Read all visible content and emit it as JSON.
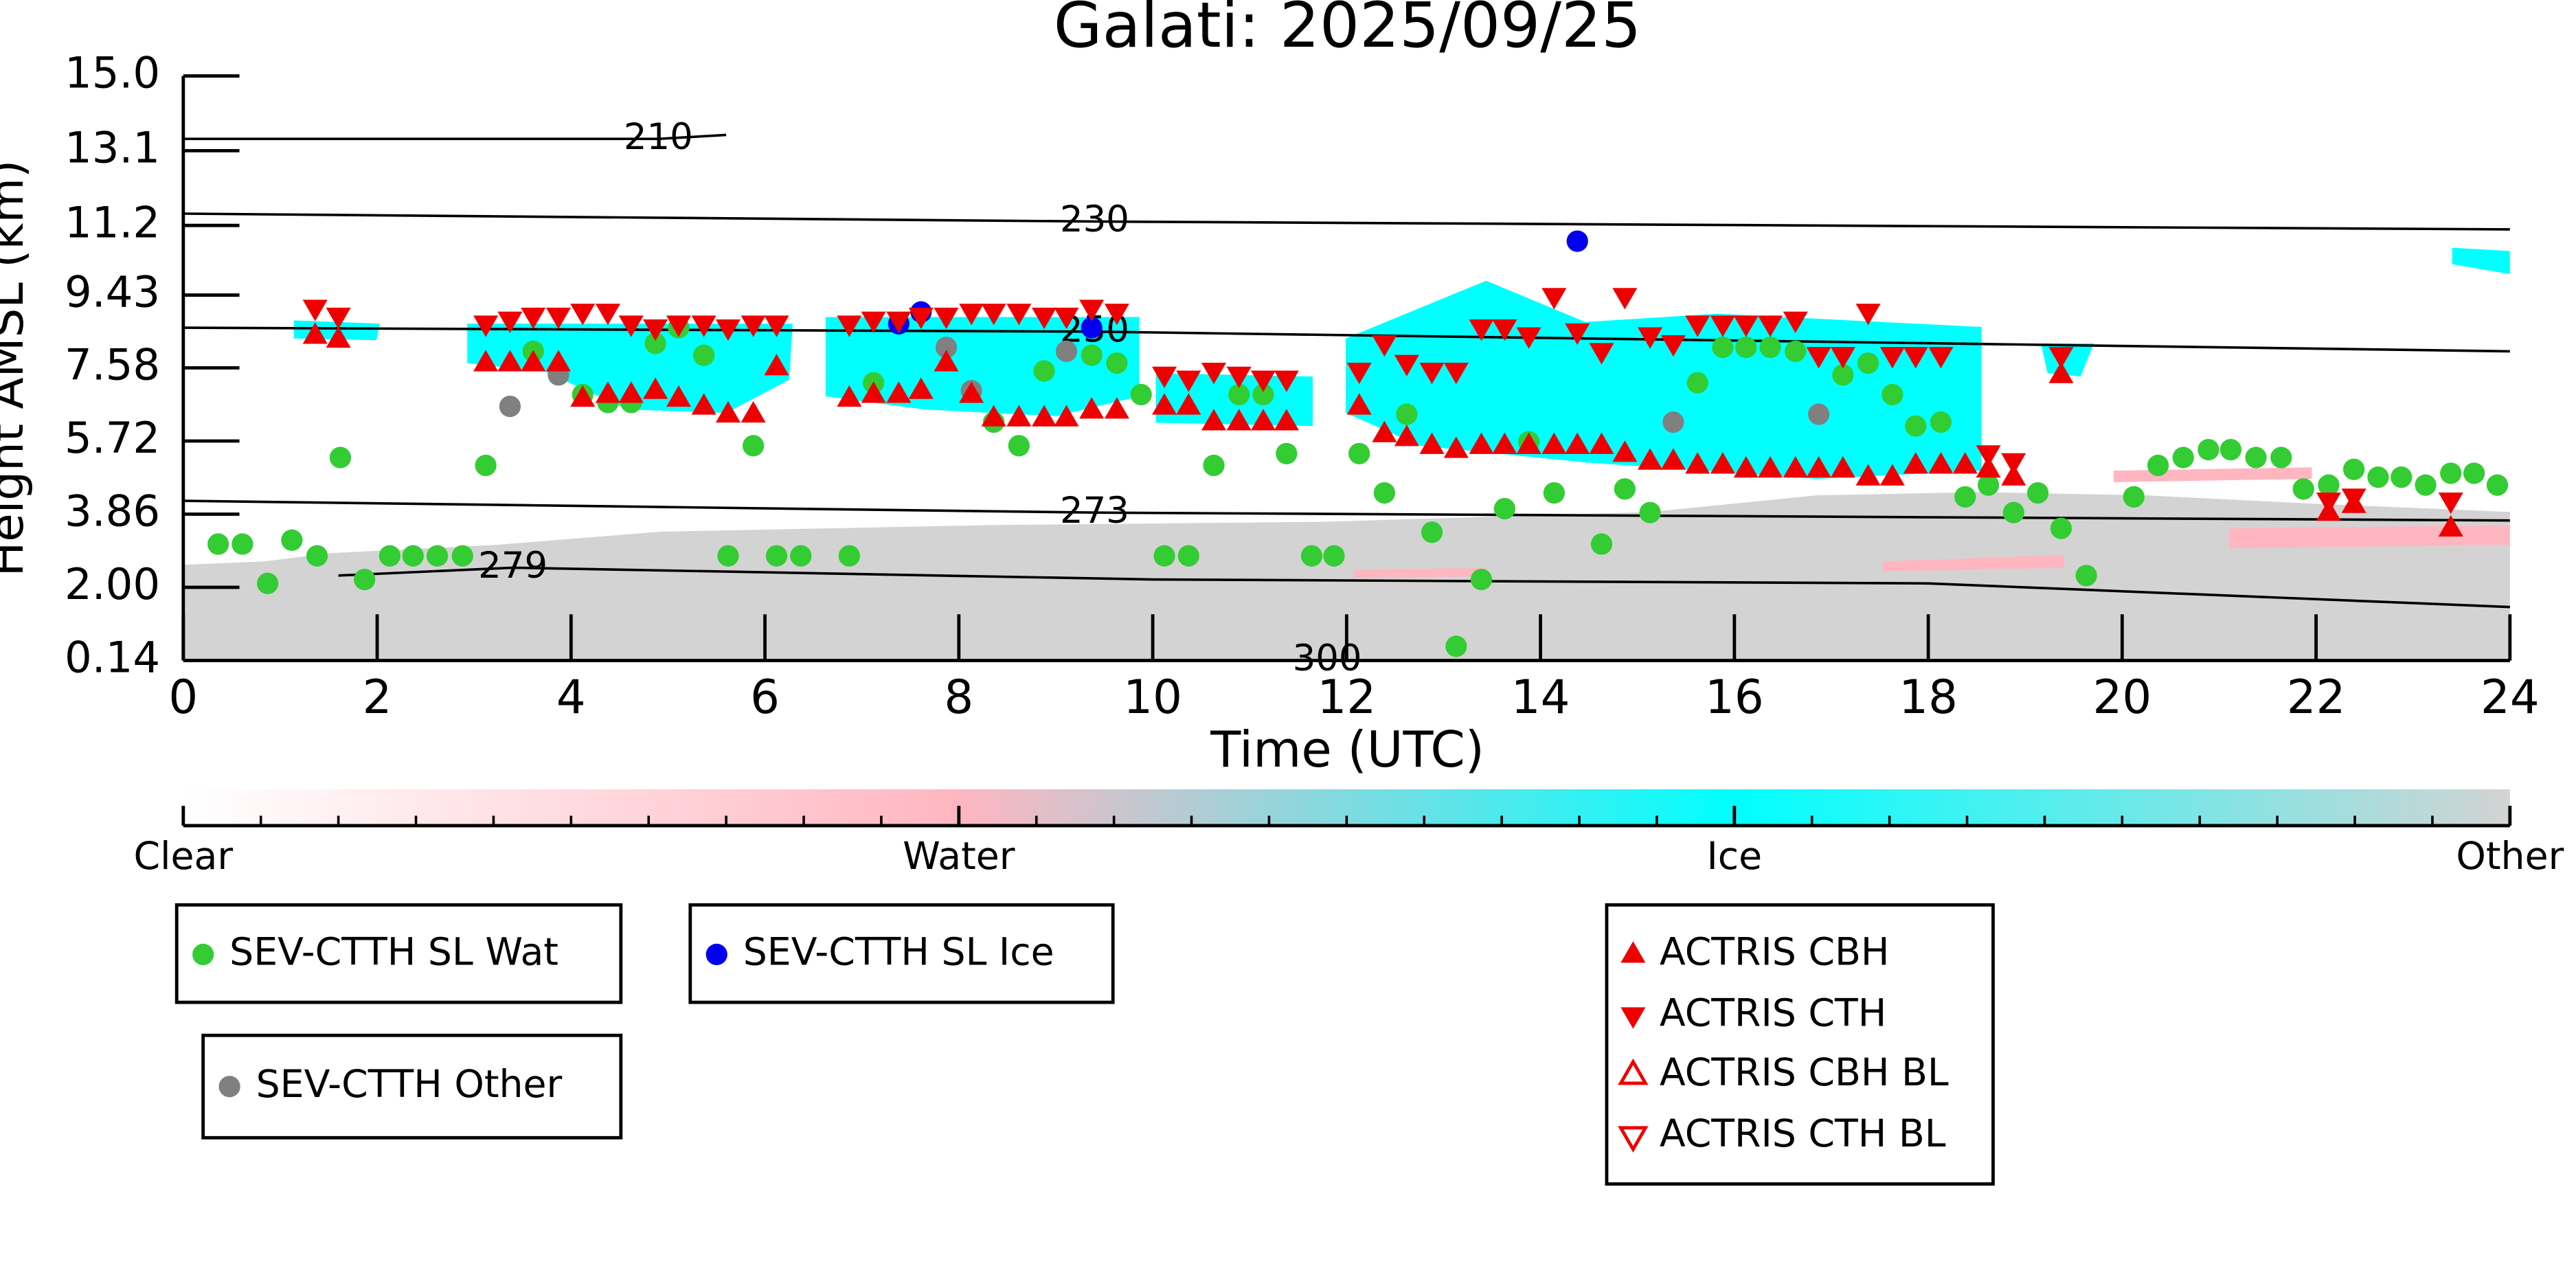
{
  "chart_data": {
    "type": "scatter",
    "title": "Galati: 2025/09/25",
    "x_label": "Time (UTC)",
    "y_label": "Height AMSL (km)",
    "xlim": [
      0,
      24
    ],
    "xticks": [
      0,
      2,
      4,
      6,
      8,
      10,
      12,
      14,
      16,
      18,
      20,
      22,
      24
    ],
    "ylim": [
      0.14,
      15
    ],
    "yticks": [
      0.14,
      {
        "value": 2,
        "label": "2.00"
      },
      3.86,
      5.72,
      7.58,
      9.43,
      11.2,
      13.1,
      {
        "value": 15,
        "label": "15.0"
      }
    ],
    "colorbar": {
      "labels": [
        "Clear",
        "Water",
        "Ice",
        "Other"
      ],
      "colors": [
        "#ffffff",
        "#ffb6c1",
        "#00ffff",
        "#d3d3d3"
      ]
    },
    "contours": [
      {
        "level": 210,
        "x": [
          0,
          4.9,
          5.6
        ],
        "y": [
          13.4,
          13.4,
          13.5
        ]
      },
      {
        "level": 230,
        "x": [
          0,
          9.4,
          24
        ],
        "y": [
          11.5,
          11.3,
          11.1
        ]
      },
      {
        "level": 250,
        "x": [
          0,
          9.4,
          24
        ],
        "y": [
          8.6,
          8.5,
          8.0
        ]
      },
      {
        "level": 273,
        "x": [
          0,
          9.4,
          24
        ],
        "y": [
          4.2,
          3.9,
          3.7
        ]
      },
      {
        "level": 279,
        "x": [
          1.6,
          3.4,
          10,
          18,
          24
        ],
        "y": [
          2.3,
          2.5,
          2.2,
          2.1,
          1.5
        ]
      },
      {
        "level": 300,
        "x": [
          11,
          11.8,
          12.5
        ],
        "y": [
          0.14,
          0.14,
          0.14
        ]
      }
    ],
    "series": [
      {
        "name": "SEV-CTTH SL Wat",
        "color": "#33cc33",
        "marker": "o",
        "filled": true,
        "x": [
          0.36,
          0.61,
          0.87,
          1.12,
          1.38,
          1.62,
          1.87,
          2.13,
          2.37,
          2.62,
          2.88,
          3.12,
          3.61,
          4.12,
          4.38,
          4.62,
          4.87,
          5.11,
          5.37,
          5.62,
          5.88,
          6.12,
          6.37,
          6.87,
          7.12,
          8.36,
          8.62,
          8.88,
          9.37,
          9.63,
          9.88,
          10.12,
          10.37,
          10.63,
          10.89,
          11.14,
          11.38,
          11.64,
          11.87,
          12.13,
          12.39,
          12.62,
          12.88,
          13.13,
          13.39,
          13.63,
          13.88,
          14.14,
          14.63,
          14.87,
          15.13,
          15.62,
          15.88,
          16.12,
          16.37,
          16.63,
          17.12,
          17.38,
          17.63,
          17.87,
          18.13,
          18.38,
          18.62,
          18.88,
          19.13,
          19.37,
          19.63,
          20.12,
          20.37,
          20.63,
          20.89,
          21.12,
          21.38,
          21.64,
          21.87,
          22.13,
          22.39,
          22.64,
          22.88,
          23.13,
          23.39,
          23.63,
          23.87
        ],
        "y": [
          3.1,
          3.1,
          2.1,
          3.2,
          2.8,
          5.3,
          2.2,
          2.8,
          2.8,
          2.8,
          2.8,
          5.1,
          8.0,
          6.9,
          6.7,
          6.7,
          8.2,
          8.6,
          7.9,
          2.8,
          5.6,
          2.8,
          2.8,
          2.8,
          7.2,
          6.2,
          5.6,
          7.5,
          7.9,
          7.7,
          6.9,
          2.8,
          2.8,
          5.1,
          6.9,
          6.9,
          5.4,
          2.8,
          2.8,
          5.4,
          4.4,
          6.4,
          3.4,
          0.5,
          2.2,
          4.0,
          5.7,
          4.4,
          3.1,
          4.5,
          3.9,
          7.2,
          8.1,
          8.1,
          8.1,
          8.0,
          7.4,
          7.7,
          6.9,
          6.1,
          6.2,
          4.3,
          4.6,
          3.9,
          4.4,
          3.5,
          2.3,
          4.3,
          5.1,
          5.3,
          5.5,
          5.5,
          5.3,
          5.3,
          4.5,
          4.6,
          5.0,
          4.8,
          4.8,
          4.6,
          4.9,
          4.9,
          4.6
        ]
      },
      {
        "name": "SEV-CTTH SL Ice",
        "color": "#0000ee",
        "marker": "o",
        "filled": true,
        "x": [
          7.38,
          7.61,
          9.37,
          14.38
        ],
        "y": [
          8.7,
          9.0,
          8.6,
          10.8
        ]
      },
      {
        "name": "SEV-CTTH Other",
        "color": "#808080",
        "marker": "o",
        "filled": true,
        "x": [
          3.37,
          3.87,
          7.87,
          8.13,
          9.11,
          15.37,
          16.87
        ],
        "y": [
          6.6,
          7.4,
          8.1,
          7.0,
          8.0,
          6.2,
          6.4
        ]
      },
      {
        "name": "ACTRIS CBH",
        "color": "#ee0000",
        "marker": "^",
        "filled": true,
        "x": [
          1.36,
          1.6,
          3.12,
          3.37,
          3.61,
          3.87,
          4.12,
          4.38,
          4.62,
          4.87,
          5.11,
          5.37,
          5.62,
          5.88,
          6.12,
          6.87,
          7.12,
          7.38,
          7.61,
          7.87,
          8.13,
          8.36,
          8.62,
          8.88,
          9.11,
          9.37,
          9.63,
          10.12,
          10.37,
          10.63,
          10.89,
          11.14,
          11.38,
          12.13,
          12.39,
          12.62,
          12.88,
          13.13,
          13.39,
          13.63,
          13.88,
          14.14,
          14.38,
          14.63,
          14.87,
          15.13,
          15.37,
          15.62,
          15.88,
          16.12,
          16.37,
          16.63,
          16.87,
          17.12,
          17.38,
          17.63,
          17.87,
          18.13,
          18.38,
          18.62,
          18.88,
          19.37,
          22.13,
          22.39,
          23.39
        ],
        "y": [
          8.4,
          8.3,
          7.7,
          7.7,
          7.7,
          7.7,
          6.8,
          6.9,
          6.9,
          7.0,
          6.8,
          6.6,
          6.4,
          6.4,
          7.6,
          6.8,
          6.9,
          6.9,
          7.0,
          7.7,
          6.9,
          6.3,
          6.3,
          6.3,
          6.3,
          6.5,
          6.5,
          6.6,
          6.6,
          6.2,
          6.2,
          6.2,
          6.2,
          6.6,
          5.9,
          5.8,
          5.6,
          5.5,
          5.6,
          5.6,
          5.6,
          5.6,
          5.6,
          5.6,
          5.4,
          5.2,
          5.2,
          5.1,
          5.1,
          5.0,
          5.0,
          5.0,
          5.0,
          5.0,
          4.8,
          4.8,
          5.1,
          5.1,
          5.1,
          5.0,
          4.8,
          7.4,
          3.9,
          4.1,
          3.5
        ]
      },
      {
        "name": "ACTRIS CTH",
        "color": "#ee0000",
        "marker": "v",
        "filled": true,
        "x": [
          1.36,
          1.6,
          3.12,
          3.37,
          3.61,
          3.87,
          4.12,
          4.38,
          4.62,
          4.87,
          5.11,
          5.37,
          5.62,
          5.88,
          6.12,
          6.87,
          7.12,
          7.38,
          7.61,
          7.87,
          8.13,
          8.36,
          8.62,
          8.88,
          9.11,
          9.37,
          9.63,
          10.12,
          10.37,
          10.63,
          10.89,
          11.14,
          11.38,
          12.13,
          12.39,
          12.62,
          12.88,
          13.13,
          13.39,
          13.63,
          13.88,
          14.14,
          14.38,
          14.63,
          14.87,
          15.13,
          15.37,
          15.62,
          15.88,
          16.12,
          16.37,
          16.63,
          16.87,
          17.12,
          17.38,
          17.63,
          17.87,
          18.13,
          18.62,
          18.88,
          19.37,
          22.13,
          22.39,
          23.39
        ],
        "y": [
          9.1,
          8.9,
          8.7,
          8.8,
          8.9,
          8.9,
          9.0,
          9.0,
          8.7,
          8.6,
          8.7,
          8.7,
          8.6,
          8.7,
          8.7,
          8.7,
          8.8,
          8.8,
          8.9,
          8.9,
          9.0,
          9.0,
          9.0,
          8.9,
          8.9,
          9.1,
          9.0,
          7.4,
          7.3,
          7.5,
          7.4,
          7.3,
          7.3,
          7.5,
          8.2,
          7.7,
          7.5,
          7.5,
          8.6,
          8.6,
          8.4,
          9.4,
          8.5,
          8.0,
          9.4,
          8.4,
          8.2,
          8.7,
          8.7,
          8.7,
          8.7,
          8.8,
          7.9,
          7.9,
          9.0,
          7.9,
          7.9,
          7.9,
          5.4,
          5.2,
          7.9,
          4.2,
          4.3,
          4.2
        ]
      },
      {
        "name": "ACTRIS CBH BL",
        "color": "#ee0000",
        "marker": "^",
        "filled": false,
        "x": [],
        "y": []
      },
      {
        "name": "ACTRIS CTH BL",
        "color": "#ee0000",
        "marker": "v",
        "filled": false,
        "x": [],
        "y": []
      }
    ]
  }
}
